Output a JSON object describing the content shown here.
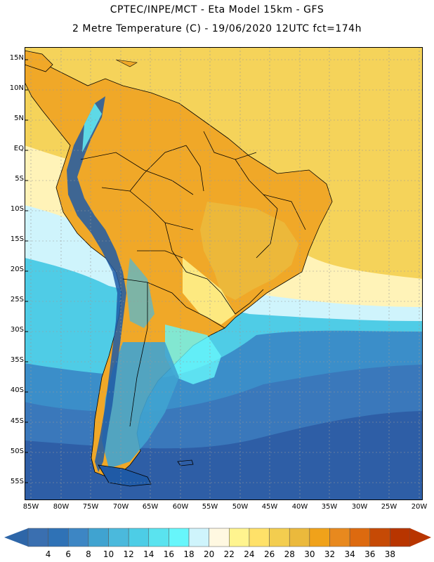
{
  "header": {
    "line1": "CPTEC/INPE/MCT  -   Eta Model 15km  -  GFS",
    "line2": "2 Metre Temperature (C) - 19/06/2020 12UTC fct=174h"
  },
  "map": {
    "region": "South America",
    "lat_labels": [
      "15N",
      "10N",
      "5N",
      "EQ",
      "5S",
      "10S",
      "15S",
      "20S",
      "25S",
      "30S",
      "35S",
      "40S",
      "45S",
      "50S",
      "55S"
    ],
    "lon_labels": [
      "85W",
      "80W",
      "75W",
      "70W",
      "65W",
      "60W",
      "55W",
      "50W",
      "45W",
      "40W",
      "35W",
      "30W",
      "25W",
      "20W"
    ]
  },
  "colorbar": {
    "levels": [
      "4",
      "6",
      "8",
      "10",
      "12",
      "14",
      "16",
      "18",
      "20",
      "22",
      "24",
      "26",
      "28",
      "30",
      "32",
      "34",
      "36",
      "38"
    ],
    "colors": [
      "#3a6fb0",
      "#2f72b6",
      "#3d86c4",
      "#40a3d0",
      "#4bb9dc",
      "#4dcde6",
      "#5ae3ef",
      "#67f6fb",
      "#cff4fc",
      "#fff8e1",
      "#fff48f",
      "#ffe169",
      "#f3cd4f",
      "#ebb93c",
      "#f0a21a",
      "#e8891e",
      "#dd6a0f",
      "#c64a05",
      "#b83500"
    ],
    "under_color": "#2e66a8",
    "over_color": "#b83500"
  },
  "palette": {
    "ocean_deep": "#2e5ea6",
    "ocean_mid": "#3b8ec9",
    "ocean_cool": "#4fcce6",
    "ocean_warm_light": "#fff3b8",
    "ocean_warm": "#f5d35a",
    "land_hot": "#f0a828",
    "andes_cold": "#1f5aa6",
    "border": "#000000"
  }
}
